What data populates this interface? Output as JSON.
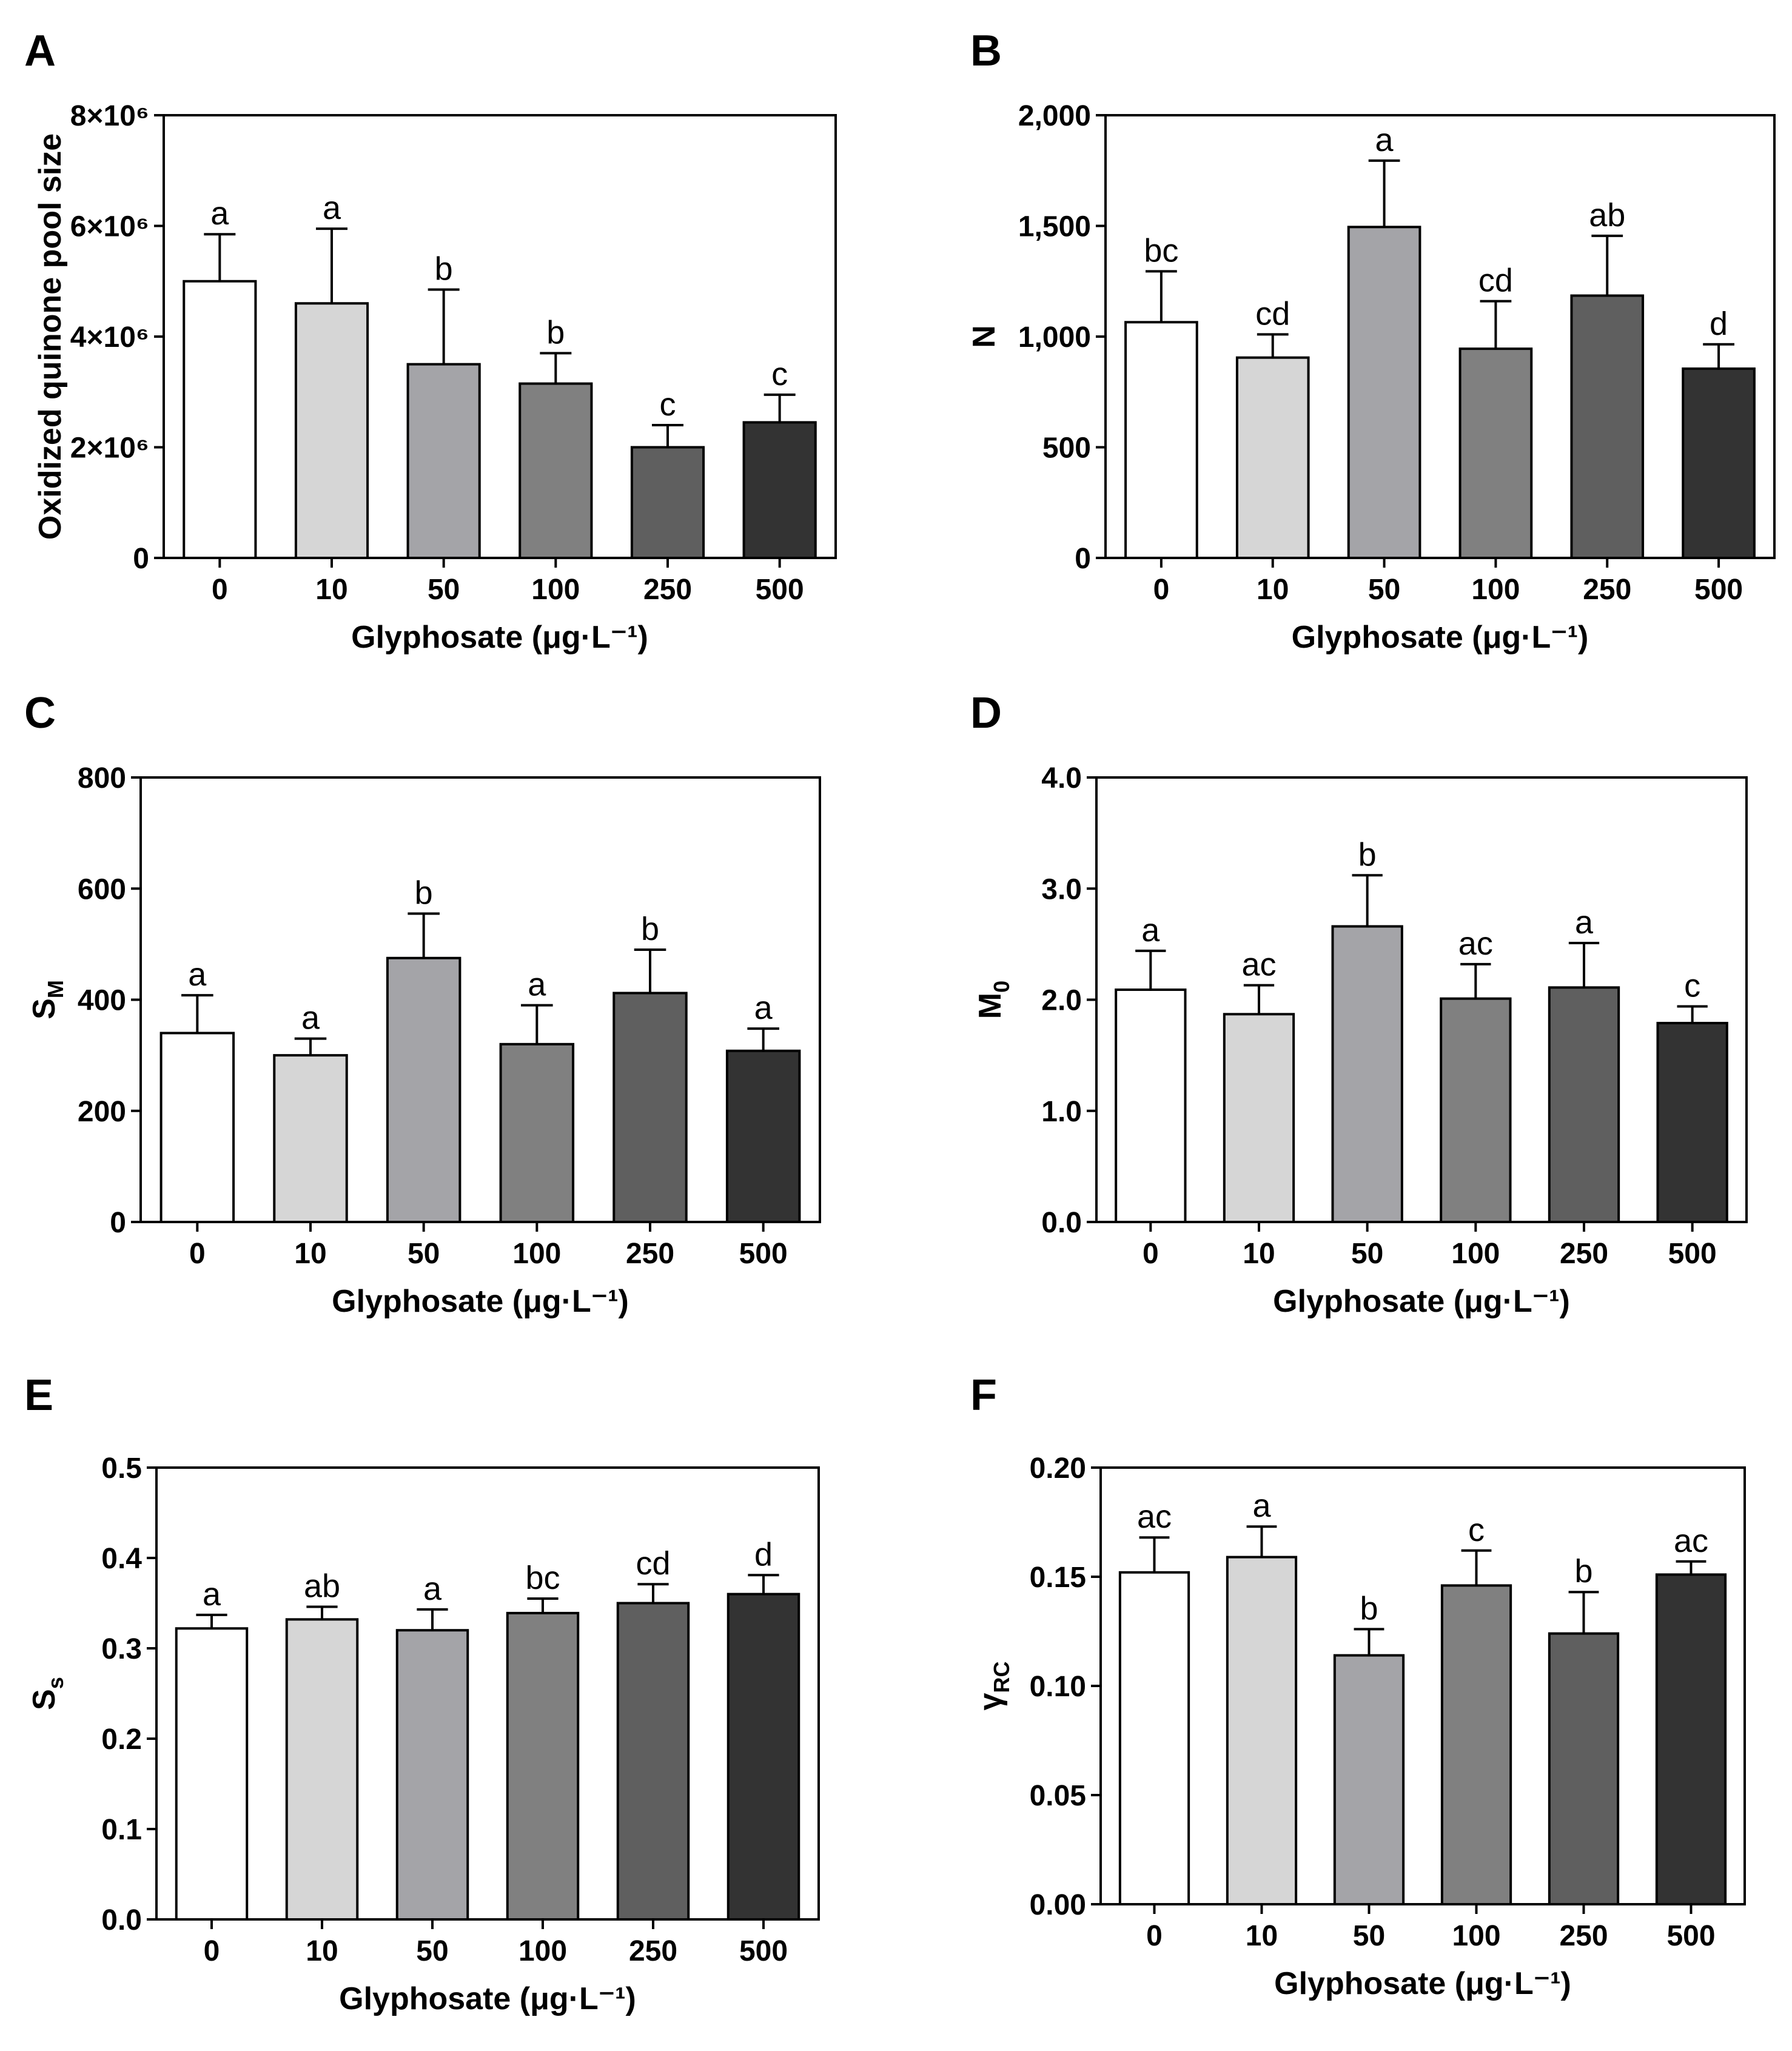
{
  "chart_data": [
    {
      "panel": "A",
      "type": "bar",
      "categories": [
        "0",
        "10",
        "50",
        "100",
        "250",
        "500"
      ],
      "values": [
        5000000.0,
        4600000.0,
        3500000.0,
        3150000.0,
        2000000.0,
        2450000.0
      ],
      "errors": [
        850000.0,
        1350000.0,
        1350000.0,
        550000.0,
        400000.0,
        500000.0
      ],
      "labels": [
        "a",
        "a",
        "b",
        "b",
        "c",
        "c"
      ],
      "xlabel": "Glyphosate (μg·L⁻¹)",
      "ylabel": "Oxidized quinone pool size",
      "ylim": [
        0,
        8000000.0
      ],
      "yticks": [
        0,
        2000000.0,
        4000000.0,
        6000000.0,
        8000000.0
      ],
      "ytick_labels": [
        "0",
        "2×10⁶",
        "4×10⁶",
        "6×10⁶",
        "8×10⁶"
      ],
      "grid": false
    },
    {
      "panel": "B",
      "type": "bar",
      "categories": [
        "0",
        "10",
        "50",
        "100",
        "250",
        "500"
      ],
      "values": [
        1065,
        905,
        1495,
        945,
        1185,
        855
      ],
      "errors": [
        230,
        105,
        300,
        215,
        270,
        110
      ],
      "labels": [
        "bc",
        "cd",
        "a",
        "cd",
        "ab",
        "d"
      ],
      "xlabel": "Glyphosate (μg·L⁻¹)",
      "ylabel": "N",
      "ylim": [
        0,
        2000
      ],
      "yticks": [
        0,
        500,
        1000,
        1500,
        2000
      ],
      "ytick_labels": [
        "0",
        "500",
        "1,000",
        "1,500",
        "2,000"
      ],
      "grid": false
    },
    {
      "panel": "C",
      "type": "bar",
      "categories": [
        "0",
        "10",
        "50",
        "100",
        "250",
        "500"
      ],
      "values": [
        340,
        300,
        475,
        320,
        412,
        308
      ],
      "errors": [
        68,
        30,
        80,
        70,
        78,
        40
      ],
      "labels": [
        "a",
        "a",
        "b",
        "a",
        "b",
        "a"
      ],
      "xlabel": "Glyphosate (μg·L⁻¹)",
      "ylabel": "S",
      "ylabel_sub": "M",
      "ylim": [
        0,
        800
      ],
      "yticks": [
        0,
        200,
        400,
        600,
        800
      ],
      "ytick_labels": [
        "0",
        "200",
        "400",
        "600",
        "800"
      ],
      "grid": false
    },
    {
      "panel": "D",
      "type": "bar",
      "categories": [
        "0",
        "10",
        "50",
        "100",
        "250",
        "500"
      ],
      "values": [
        2.09,
        1.87,
        2.66,
        2.01,
        2.11,
        1.79
      ],
      "errors": [
        0.35,
        0.26,
        0.46,
        0.31,
        0.4,
        0.15
      ],
      "labels": [
        "a",
        "ac",
        "b",
        "ac",
        "a",
        "c"
      ],
      "xlabel": "Glyphosate (μg·L⁻¹)",
      "ylabel": "M",
      "ylabel_sub": "0",
      "ylim": [
        0,
        4.0
      ],
      "yticks": [
        0,
        1,
        2,
        3,
        4
      ],
      "ytick_labels": [
        "0.0",
        "1.0",
        "2.0",
        "3.0",
        "4.0"
      ],
      "grid": false
    },
    {
      "panel": "E",
      "type": "bar",
      "categories": [
        "0",
        "10",
        "50",
        "100",
        "250",
        "500"
      ],
      "values": [
        0.322,
        0.332,
        0.32,
        0.339,
        0.35,
        0.36
      ],
      "errors": [
        0.015,
        0.014,
        0.023,
        0.016,
        0.021,
        0.021
      ],
      "labels": [
        "a",
        "ab",
        "a",
        "bc",
        "cd",
        "d"
      ],
      "xlabel": "Glyphosate (μg·L⁻¹)",
      "ylabel": "S",
      "ylabel_sub": "s",
      "ylim": [
        0,
        0.5
      ],
      "yticks": [
        0,
        0.1,
        0.2,
        0.3,
        0.4,
        0.5
      ],
      "ytick_labels": [
        "0.0",
        "0.1",
        "0.2",
        "0.3",
        "0.4",
        "0.5"
      ],
      "grid": false
    },
    {
      "panel": "F",
      "type": "bar",
      "categories": [
        "0",
        "10",
        "50",
        "100",
        "250",
        "500"
      ],
      "values": [
        0.152,
        0.159,
        0.114,
        0.146,
        0.124,
        0.151
      ],
      "errors": [
        0.016,
        0.014,
        0.012,
        0.016,
        0.019,
        0.006
      ],
      "labels": [
        "ac",
        "a",
        "b",
        "c",
        "b",
        "ac"
      ],
      "xlabel": "Glyphosate (μg·L⁻¹)",
      "ylabel": "γ",
      "ylabel_sub": "RC",
      "ylim": [
        0,
        0.2
      ],
      "yticks": [
        0,
        0.05,
        0.1,
        0.15,
        0.2
      ],
      "ytick_labels": [
        "0.00",
        "0.05",
        "0.10",
        "0.15",
        "0.20"
      ],
      "grid": false
    }
  ],
  "bar_colors": [
    "#ffffff",
    "#d6d6d6",
    "#a4a4a8",
    "#808080",
    "#5f5f5f",
    "#333333"
  ],
  "axis_color": "#000000"
}
